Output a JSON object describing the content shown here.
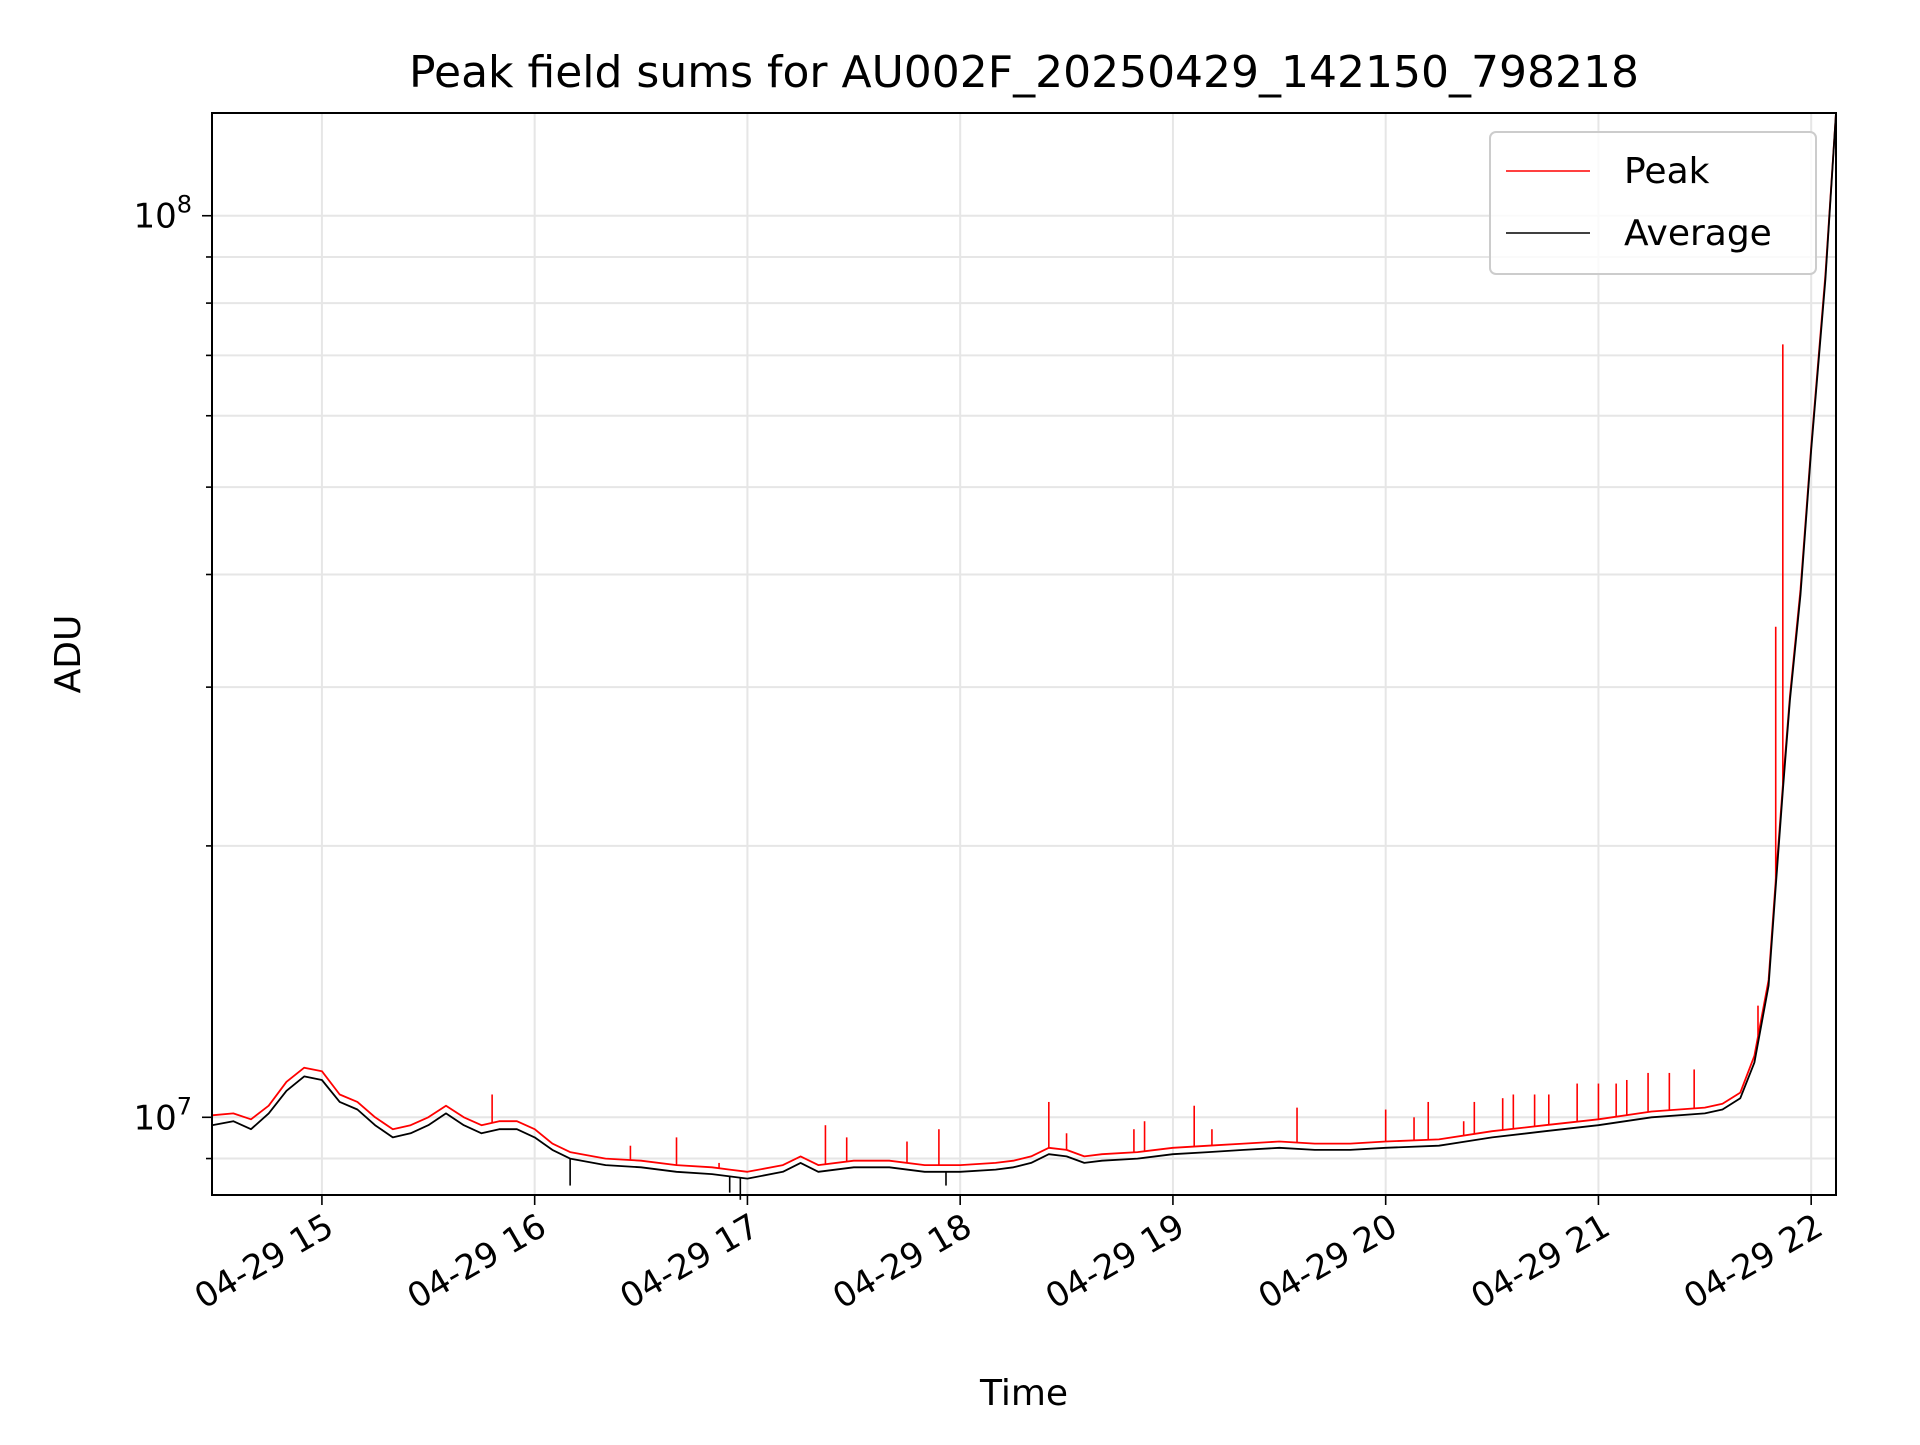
{
  "chart_data": {
    "type": "line",
    "title": "Peak field sums for AU002F_20250429_142150_798218",
    "xlabel": "Time",
    "ylabel": "ADU",
    "x_range": [
      "2025-04-29 14:29",
      "2025-04-29 22:07"
    ],
    "y_range": [
      8200000,
      130000000
    ],
    "y_scale": "log",
    "grid": true,
    "legend_position": "top-right",
    "x_ticks": [
      {
        "value": "2025-04-29 15:00",
        "label": "04-29 15"
      },
      {
        "value": "2025-04-29 16:00",
        "label": "04-29 16"
      },
      {
        "value": "2025-04-29 17:00",
        "label": "04-29 17"
      },
      {
        "value": "2025-04-29 18:00",
        "label": "04-29 18"
      },
      {
        "value": "2025-04-29 19:00",
        "label": "04-29 19"
      },
      {
        "value": "2025-04-29 20:00",
        "label": "04-29 20"
      },
      {
        "value": "2025-04-29 21:00",
        "label": "04-29 21"
      },
      {
        "value": "2025-04-29 22:00",
        "label": "04-29 22"
      }
    ],
    "y_major_ticks": [
      {
        "value": 10000000,
        "base": "10",
        "exp": "7"
      },
      {
        "value": 100000000,
        "base": "10",
        "exp": "8"
      }
    ],
    "y_minor_ticks": [
      9000000,
      20000000,
      30000000,
      40000000,
      50000000,
      60000000,
      70000000,
      80000000,
      90000000
    ],
    "series": [
      {
        "name": "Average",
        "color": "#000000",
        "x": [
          "2025-04-29 14:29",
          "2025-04-29 14:35",
          "2025-04-29 14:40",
          "2025-04-29 14:45",
          "2025-04-29 14:50",
          "2025-04-29 14:55",
          "2025-04-29 15:00",
          "2025-04-29 15:05",
          "2025-04-29 15:10",
          "2025-04-29 15:15",
          "2025-04-29 15:20",
          "2025-04-29 15:25",
          "2025-04-29 15:30",
          "2025-04-29 15:35",
          "2025-04-29 15:40",
          "2025-04-29 15:45",
          "2025-04-29 15:50",
          "2025-04-29 15:55",
          "2025-04-29 16:00",
          "2025-04-29 16:05",
          "2025-04-29 16:10",
          "2025-04-29 16:20",
          "2025-04-29 16:30",
          "2025-04-29 16:40",
          "2025-04-29 16:50",
          "2025-04-29 16:55",
          "2025-04-29 17:00",
          "2025-04-29 17:10",
          "2025-04-29 17:15",
          "2025-04-29 17:20",
          "2025-04-29 17:30",
          "2025-04-29 17:40",
          "2025-04-29 17:50",
          "2025-04-29 18:00",
          "2025-04-29 18:10",
          "2025-04-29 18:15",
          "2025-04-29 18:20",
          "2025-04-29 18:25",
          "2025-04-29 18:30",
          "2025-04-29 18:35",
          "2025-04-29 18:40",
          "2025-04-29 18:50",
          "2025-04-29 19:00",
          "2025-04-29 19:10",
          "2025-04-29 19:20",
          "2025-04-29 19:30",
          "2025-04-29 19:40",
          "2025-04-29 19:50",
          "2025-04-29 20:00",
          "2025-04-29 20:15",
          "2025-04-29 20:30",
          "2025-04-29 20:45",
          "2025-04-29 21:00",
          "2025-04-29 21:15",
          "2025-04-29 21:30",
          "2025-04-29 21:35",
          "2025-04-29 21:40",
          "2025-04-29 21:44",
          "2025-04-29 21:48",
          "2025-04-29 21:50",
          "2025-04-29 21:52",
          "2025-04-29 21:54",
          "2025-04-29 21:57",
          "2025-04-29 22:00",
          "2025-04-29 22:04",
          "2025-04-29 22:07"
        ],
        "y": [
          9800000,
          9900000,
          9700000,
          10100000,
          10700000,
          11100000,
          11000000,
          10400000,
          10200000,
          9800000,
          9500000,
          9600000,
          9800000,
          10100000,
          9800000,
          9600000,
          9700000,
          9700000,
          9500000,
          9200000,
          9000000,
          8850000,
          8800000,
          8700000,
          8650000,
          8600000,
          8550000,
          8700000,
          8900000,
          8700000,
          8800000,
          8800000,
          8700000,
          8700000,
          8750000,
          8800000,
          8900000,
          9100000,
          9050000,
          8900000,
          8950000,
          9000000,
          9100000,
          9150000,
          9200000,
          9250000,
          9200000,
          9200000,
          9250000,
          9300000,
          9500000,
          9650000,
          9800000,
          10000000,
          10100000,
          10200000,
          10500000,
          11500000,
          14000000,
          18000000,
          23000000,
          29000000,
          38000000,
          55000000,
          85000000,
          130000000
        ],
        "spikes": [
          {
            "x": "2025-04-29 16:10",
            "y": 8400000
          },
          {
            "x": "2025-04-29 16:55",
            "y": 8250000
          },
          {
            "x": "2025-04-29 16:58",
            "y": 8100000
          },
          {
            "x": "2025-04-29 17:56",
            "y": 8400000
          }
        ]
      },
      {
        "name": "Peak",
        "color": "#ff0000",
        "x": [
          "2025-04-29 14:29",
          "2025-04-29 14:35",
          "2025-04-29 14:40",
          "2025-04-29 14:45",
          "2025-04-29 14:50",
          "2025-04-29 14:55",
          "2025-04-29 15:00",
          "2025-04-29 15:05",
          "2025-04-29 15:10",
          "2025-04-29 15:15",
          "2025-04-29 15:20",
          "2025-04-29 15:25",
          "2025-04-29 15:30",
          "2025-04-29 15:35",
          "2025-04-29 15:40",
          "2025-04-29 15:45",
          "2025-04-29 15:50",
          "2025-04-29 15:55",
          "2025-04-29 16:00",
          "2025-04-29 16:05",
          "2025-04-29 16:10",
          "2025-04-29 16:20",
          "2025-04-29 16:30",
          "2025-04-29 16:40",
          "2025-04-29 16:50",
          "2025-04-29 16:55",
          "2025-04-29 17:00",
          "2025-04-29 17:10",
          "2025-04-29 17:15",
          "2025-04-29 17:20",
          "2025-04-29 17:30",
          "2025-04-29 17:40",
          "2025-04-29 17:50",
          "2025-04-29 18:00",
          "2025-04-29 18:10",
          "2025-04-29 18:15",
          "2025-04-29 18:20",
          "2025-04-29 18:25",
          "2025-04-29 18:30",
          "2025-04-29 18:35",
          "2025-04-29 18:40",
          "2025-04-29 18:50",
          "2025-04-29 19:00",
          "2025-04-29 19:10",
          "2025-04-29 19:20",
          "2025-04-29 19:30",
          "2025-04-29 19:40",
          "2025-04-29 19:50",
          "2025-04-29 20:00",
          "2025-04-29 20:15",
          "2025-04-29 20:30",
          "2025-04-29 20:45",
          "2025-04-29 21:00",
          "2025-04-29 21:15",
          "2025-04-29 21:30",
          "2025-04-29 21:35",
          "2025-04-29 21:40",
          "2025-04-29 21:44",
          "2025-04-29 21:48",
          "2025-04-29 21:50",
          "2025-04-29 21:52",
          "2025-04-29 21:54",
          "2025-04-29 21:57",
          "2025-04-29 22:00",
          "2025-04-29 22:04",
          "2025-04-29 22:07"
        ],
        "y": [
          10050000,
          10100000,
          9950000,
          10300000,
          10950000,
          11350000,
          11250000,
          10600000,
          10400000,
          10000000,
          9700000,
          9800000,
          10000000,
          10300000,
          10000000,
          9800000,
          9900000,
          9900000,
          9700000,
          9350000,
          9150000,
          9000000,
          8950000,
          8850000,
          8800000,
          8750000,
          8700000,
          8850000,
          9050000,
          8850000,
          8950000,
          8950000,
          8850000,
          8850000,
          8900000,
          8950000,
          9050000,
          9250000,
          9200000,
          9050000,
          9100000,
          9150000,
          9250000,
          9300000,
          9350000,
          9400000,
          9350000,
          9350000,
          9400000,
          9450000,
          9650000,
          9800000,
          9950000,
          10150000,
          10250000,
          10350000,
          10650000,
          11700000,
          14200000,
          18300000,
          23300000,
          29300000,
          38500000,
          55500000,
          86000000,
          130000000
        ],
        "spikes": [
          {
            "x": "2025-04-29 15:48",
            "y": 10600000
          },
          {
            "x": "2025-04-29 16:27",
            "y": 9300000
          },
          {
            "x": "2025-04-29 16:40",
            "y": 9500000
          },
          {
            "x": "2025-04-29 16:52",
            "y": 8900000
          },
          {
            "x": "2025-04-29 17:22",
            "y": 9800000
          },
          {
            "x": "2025-04-29 17:28",
            "y": 9500000
          },
          {
            "x": "2025-04-29 17:45",
            "y": 9400000
          },
          {
            "x": "2025-04-29 17:54",
            "y": 9700000
          },
          {
            "x": "2025-04-29 18:25",
            "y": 10400000
          },
          {
            "x": "2025-04-29 18:30",
            "y": 9600000
          },
          {
            "x": "2025-04-29 18:49",
            "y": 9700000
          },
          {
            "x": "2025-04-29 18:52",
            "y": 9900000
          },
          {
            "x": "2025-04-29 19:06",
            "y": 10300000
          },
          {
            "x": "2025-04-29 19:11",
            "y": 9700000
          },
          {
            "x": "2025-04-29 19:35",
            "y": 10250000
          },
          {
            "x": "2025-04-29 20:00",
            "y": 10200000
          },
          {
            "x": "2025-04-29 20:08",
            "y": 10000000
          },
          {
            "x": "2025-04-29 20:12",
            "y": 10400000
          },
          {
            "x": "2025-04-29 20:22",
            "y": 9900000
          },
          {
            "x": "2025-04-29 20:25",
            "y": 10400000
          },
          {
            "x": "2025-04-29 20:33",
            "y": 10500000
          },
          {
            "x": "2025-04-29 20:36",
            "y": 10600000
          },
          {
            "x": "2025-04-29 20:42",
            "y": 10600000
          },
          {
            "x": "2025-04-29 20:46",
            "y": 10600000
          },
          {
            "x": "2025-04-29 20:54",
            "y": 10900000
          },
          {
            "x": "2025-04-29 21:00",
            "y": 10900000
          },
          {
            "x": "2025-04-29 21:05",
            "y": 10900000
          },
          {
            "x": "2025-04-29 21:08",
            "y": 11000000
          },
          {
            "x": "2025-04-29 21:14",
            "y": 11200000
          },
          {
            "x": "2025-04-29 21:20",
            "y": 11200000
          },
          {
            "x": "2025-04-29 21:27",
            "y": 11300000
          },
          {
            "x": "2025-04-29 21:45",
            "y": 13300000
          },
          {
            "x": "2025-04-29 21:50",
            "y": 35000000
          },
          {
            "x": "2025-04-29 21:52",
            "y": 72000000
          }
        ]
      }
    ]
  }
}
